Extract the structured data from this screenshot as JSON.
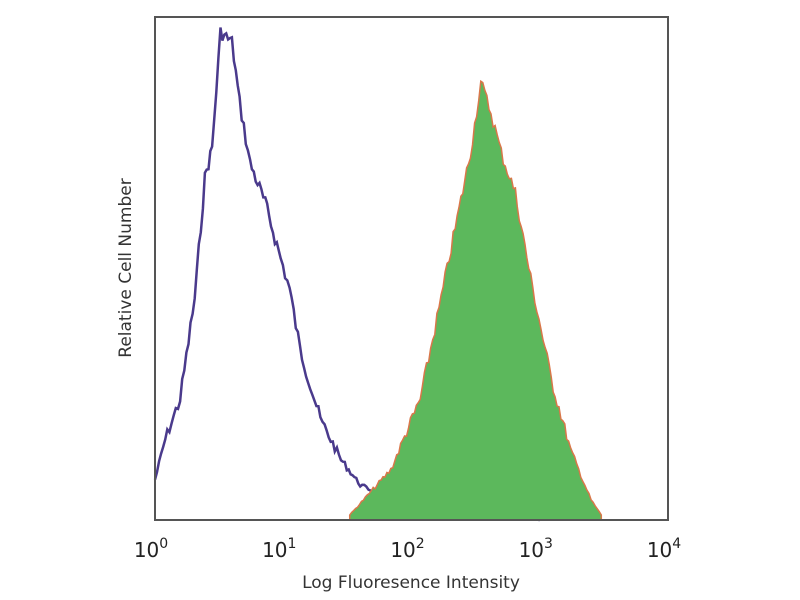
{
  "chart_data": {
    "type": "area",
    "title": "",
    "xlabel": "Log Fluoresence Intensity",
    "ylabel": "Relative Cell Number",
    "xscale": "log",
    "xlim": [
      1,
      10000
    ],
    "ylim": [
      0,
      100
    ],
    "grid": false,
    "legend": "none",
    "x_ticks": [
      {
        "base": "10",
        "exp": "0",
        "value": 1
      },
      {
        "base": "10",
        "exp": "1",
        "value": 10
      },
      {
        "base": "10",
        "exp": "2",
        "value": 100
      },
      {
        "base": "10",
        "exp": "3",
        "value": 1000
      },
      {
        "base": "10",
        "exp": "4",
        "value": 10000
      }
    ],
    "series": [
      {
        "style": "outline",
        "color": "#4a3a8c",
        "x": [
          1,
          1.2,
          1.57,
          2.04,
          2.45,
          2.79,
          3.24,
          3.98,
          4.57,
          5.5,
          7.24,
          9.55,
          11.2,
          13.5,
          19.5,
          28.2,
          39.8,
          57.5,
          117,
          347,
          1000
        ],
        "y": [
          8,
          16,
          24,
          44,
          68,
          74,
          97,
          95,
          83,
          71,
          63,
          52,
          46,
          34,
          20,
          12,
          7,
          5,
          2,
          1,
          0
        ]
      },
      {
        "style": "filled",
        "color": "#5cb85c",
        "outline_color": "#d9774a",
        "x": [
          33,
          69,
          117,
          170,
          219,
          288,
          347,
          417,
          501,
          646,
          851,
          1230,
          1738,
          2512,
          3020
        ],
        "y": [
          1,
          10,
          24,
          44,
          58,
          73,
          87,
          81,
          73,
          65,
          48,
          28,
          14,
          4,
          1
        ]
      }
    ]
  }
}
